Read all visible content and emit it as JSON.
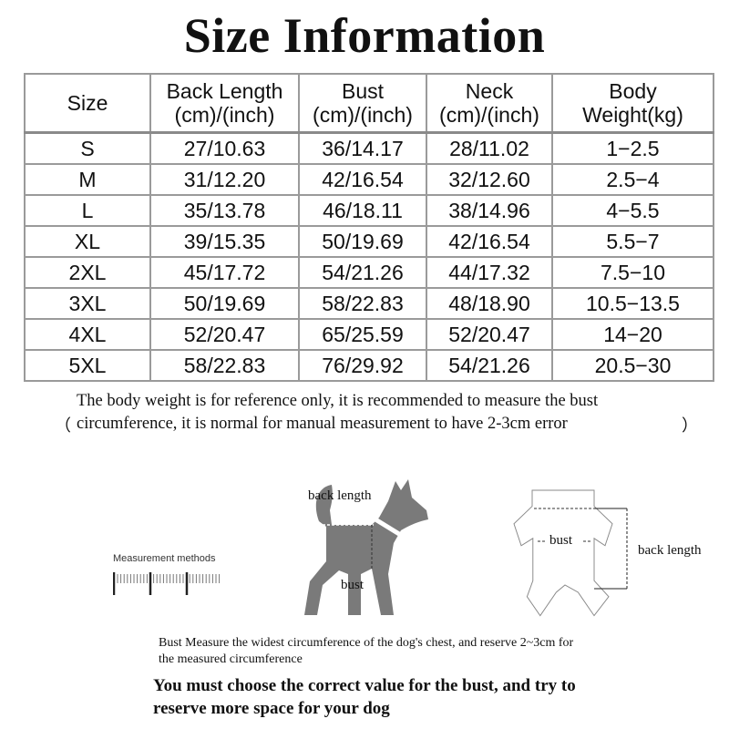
{
  "title": "Size Information",
  "table": {
    "headers": [
      [
        "Size",
        ""
      ],
      [
        "Back Length",
        "(cm)/(inch)"
      ],
      [
        "Bust",
        "(cm)/(inch)"
      ],
      [
        "Neck",
        "(cm)/(inch)"
      ],
      [
        "Body",
        "Weight(kg)"
      ]
    ],
    "rows": [
      [
        "S",
        "27/10.63",
        "36/14.17",
        "28/11.02",
        "1−2.5"
      ],
      [
        "M",
        "31/12.20",
        "42/16.54",
        "32/12.60",
        "2.5−4"
      ],
      [
        "L",
        "35/13.78",
        "46/18.11",
        "38/14.96",
        "4−5.5"
      ],
      [
        "XL",
        "39/15.35",
        "50/19.69",
        "42/16.54",
        "5.5−7"
      ],
      [
        "2XL",
        "45/17.72",
        "54/21.26",
        "44/17.32",
        "7.5−10"
      ],
      [
        "3XL",
        "50/19.69",
        "58/22.83",
        "48/18.90",
        "10.5−13.5"
      ],
      [
        "4XL",
        "52/20.47",
        "65/25.59",
        "52/20.47",
        "14−20"
      ],
      [
        "5XL",
        "58/22.83",
        "76/29.92",
        "54/21.26",
        "20.5−30"
      ]
    ]
  },
  "note": {
    "open_paren": "（",
    "close_paren": "）",
    "text": "The body weight is for reference only, it is recommended to measure the bust circumference, it is normal for manual measurement to have 2-3cm error"
  },
  "diagram": {
    "measurement_methods": "Measurement methods",
    "dog_back_length": "back length",
    "dog_bust": "bust",
    "garment_bust": "bust",
    "garment_back_length": "back length",
    "dog_color": "#7a7a7a"
  },
  "bust_measure": "Bust Measure the widest circumference of the dog's chest, and reserve 2~3cm for the measured circumference",
  "advice": "You must choose the correct value for the bust, and try to reserve more space for your dog"
}
